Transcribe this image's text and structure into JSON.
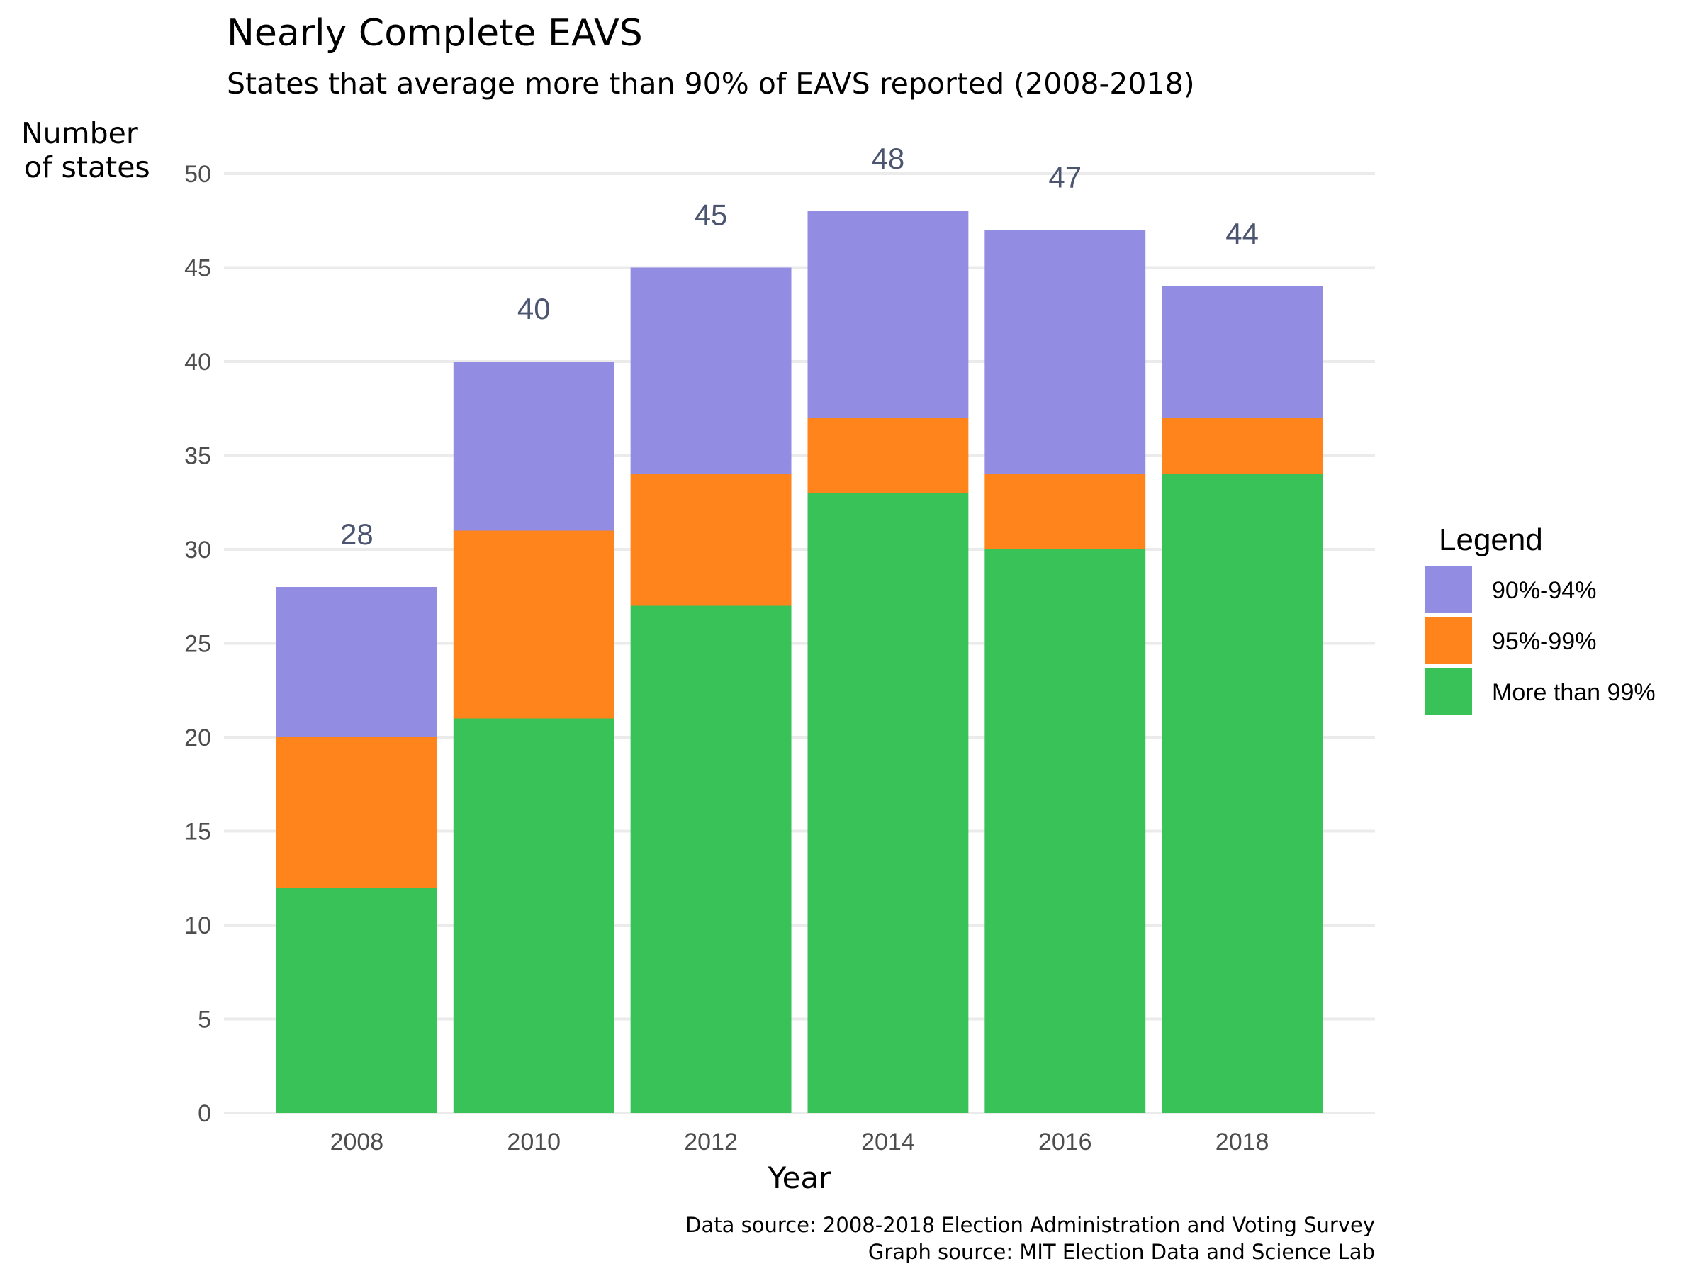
{
  "chart_data": {
    "type": "bar",
    "stacked": true,
    "title": "Nearly Complete EAVS",
    "subtitle": "States that average more than 90% of EAVS reported (2008-2018)",
    "xlabel": "Year",
    "ylabel_lines": [
      "Number",
      "of states"
    ],
    "categories": [
      "2008",
      "2010",
      "2012",
      "2014",
      "2016",
      "2018"
    ],
    "series": [
      {
        "name": "More than 99%",
        "color": "#38c258",
        "values": [
          12,
          21,
          27,
          33,
          30,
          34
        ]
      },
      {
        "name": "95%-99%",
        "color": "#fe841b",
        "values": [
          8,
          10,
          7,
          4,
          4,
          3
        ]
      },
      {
        "name": "90%-94%",
        "color": "#928de3",
        "values": [
          8,
          9,
          11,
          11,
          13,
          7
        ]
      }
    ],
    "totals": [
      28,
      40,
      45,
      48,
      47,
      44
    ],
    "total_labels": [
      "28",
      "40",
      "45",
      "48",
      "47",
      "44"
    ],
    "ylim": [
      0,
      50
    ],
    "yticks": [
      0,
      5,
      10,
      15,
      20,
      25,
      30,
      35,
      40,
      45,
      50
    ],
    "ytick_labels": [
      "0",
      "5",
      "10",
      "15",
      "20",
      "25",
      "30",
      "35",
      "40",
      "45",
      "50"
    ],
    "grid": true,
    "legend": {
      "title": "Legend",
      "position": "right",
      "entries": [
        "90%-94%",
        "95%-99%",
        "More than 99%"
      ]
    },
    "caption_lines": [
      "Data source:  2008-2018 Election Administration and Voting Survey",
      "Graph source:  MIT Election Data and Science Lab"
    ]
  },
  "colors": {
    "label_text": "#4c5570",
    "tick_text": "#4d4d4d",
    "grid": "#ebebeb"
  }
}
